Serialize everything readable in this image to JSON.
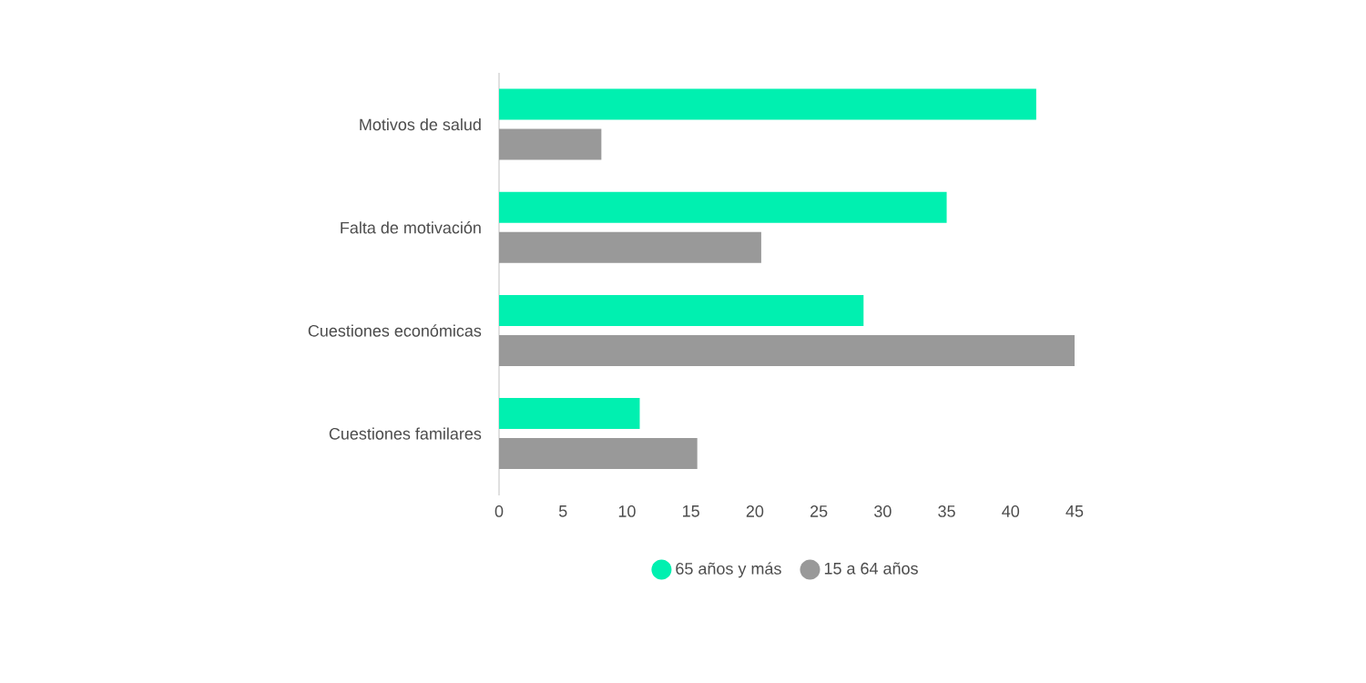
{
  "chart_data": {
    "type": "bar",
    "orientation": "horizontal",
    "categories": [
      "Motivos de salud",
      "Falta de motivación",
      "Cuestiones económicas",
      "Cuestiones familares"
    ],
    "series": [
      {
        "name": "65 años y más",
        "color": "#00f0b0",
        "values": [
          42,
          35,
          28.5,
          11
        ]
      },
      {
        "name": "15 a 64 años",
        "color": "#999999",
        "values": [
          8,
          20.5,
          45,
          15.5
        ]
      }
    ],
    "xlim": [
      0,
      45
    ],
    "xticks": [
      0,
      5,
      10,
      15,
      20,
      25,
      30,
      35,
      40,
      45
    ],
    "legend": "bottom"
  }
}
